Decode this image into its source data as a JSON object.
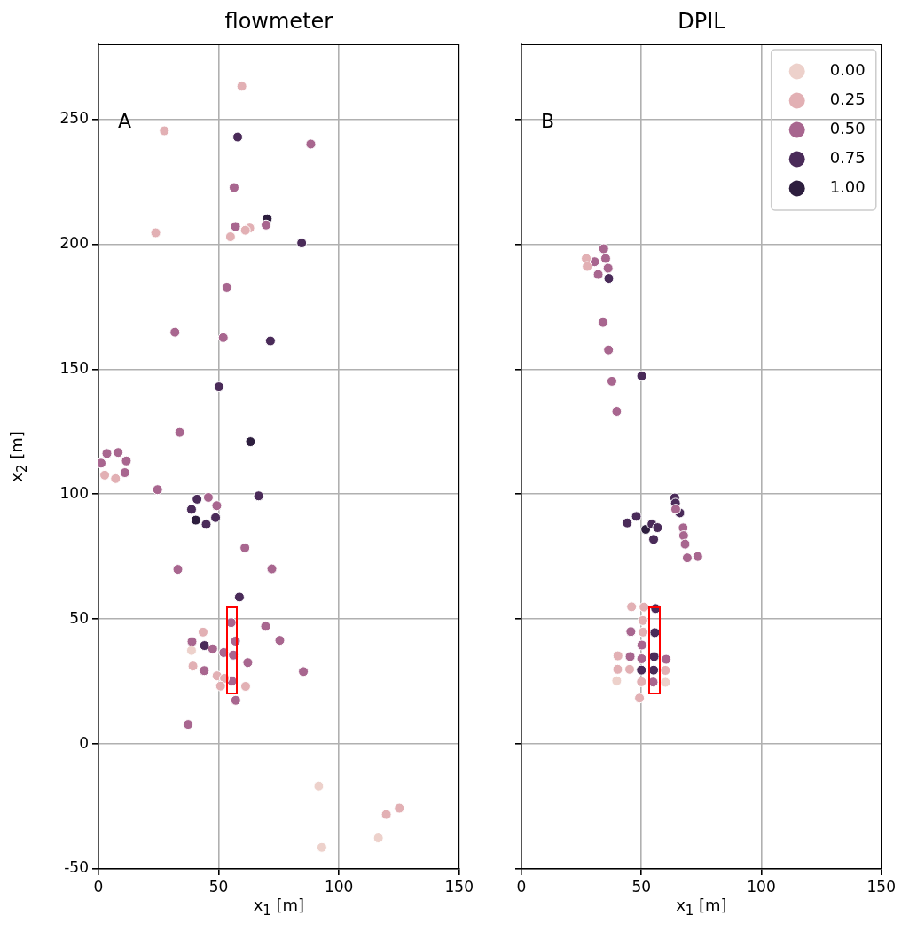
{
  "chart_data": [
    {
      "type": "scatter",
      "title": "flowmeter",
      "xlabel": "x$_{1}$ [m]",
      "ylabel": "x$_{2}$ [m]",
      "annotations": [
        "A"
      ],
      "series": [
        {
          "color": "#edd1cb",
          "x": [
            38.7,
            91.6,
            116.4,
            92.9
          ],
          "values": [
            37.4,
            -16.9,
            -37.6,
            -41.4
          ]
        },
        {
          "color": "#e2b0b4",
          "x": [
            59.6,
            27.4,
            62.9,
            61.1,
            54.9,
            23.8,
            2.6,
            7.1,
            43.5,
            39.3,
            49.3,
            52.4,
            50.8,
            61.2,
            125.1,
            119.7
          ],
          "values": [
            263.2,
            245.4,
            206.5,
            205.6,
            203.0,
            204.6,
            107.6,
            106.2,
            44.8,
            31.2,
            27.3,
            26.3,
            23.2,
            23.1,
            -25.7,
            -28.2
          ]
        },
        {
          "color": "#a8668f",
          "x": [
            88.3,
            56.4,
            69.7,
            57.0,
            53.4,
            31.8,
            51.9,
            33.8,
            3.5,
            8.2,
            11.6,
            1.1,
            11.0,
            24.6,
            45.7,
            49.2,
            60.9,
            33.0,
            72.1,
            55.2,
            69.5,
            38.9,
            75.4,
            47.5,
            57.0,
            52.1,
            56.1,
            62.1,
            44.0,
            85.2,
            55.5,
            57.1,
            37.3
          ],
          "values": [
            240.1,
            222.7,
            207.7,
            207.1,
            182.8,
            164.8,
            162.6,
            124.7,
            116.3,
            116.7,
            113.3,
            112.4,
            108.6,
            101.8,
            98.7,
            95.4,
            78.5,
            69.9,
            70.1,
            48.6,
            47.1,
            41.0,
            41.5,
            38.1,
            41.2,
            36.6,
            35.6,
            32.6,
            29.4,
            29.0,
            25.2,
            17.5,
            7.8
          ]
        },
        {
          "color": "#4a2b59",
          "x": [
            57.9,
            84.5,
            71.5,
            50.1,
            41.0,
            38.7,
            48.7,
            44.8,
            66.6,
            58.6,
            44.1
          ],
          "values": [
            242.9,
            200.5,
            161.3,
            143.0,
            98.0,
            93.9,
            90.6,
            87.9,
            99.3,
            58.8,
            39.4
          ]
        },
        {
          "color": "#2d1e3e",
          "x": [
            70.2,
            63.2,
            40.5
          ],
          "values": [
            210.2,
            121.0,
            89.6
          ]
        }
      ],
      "xlim": [
        0,
        150
      ],
      "xticks": [
        0,
        50,
        100,
        150
      ],
      "ylim": [
        -50,
        280
      ],
      "yticks": [
        -50,
        0,
        50,
        100,
        150,
        200,
        250
      ],
      "grid": true,
      "marker": "circle"
    },
    {
      "type": "scatter",
      "title": "DPIL",
      "xlabel": "x$_{1}$ [m]",
      "annotations": [
        "B"
      ],
      "series": [
        {
          "name": "0.00",
          "color": "#edd1cb",
          "x": [
            39.7,
            60.0
          ],
          "values": [
            25.3,
            24.7
          ]
        },
        {
          "name": "0.25",
          "color": "#e2b0b4",
          "x": [
            27.0,
            27.4,
            45.9,
            51.1,
            50.6,
            50.7,
            40.2,
            45.1,
            40.1,
            60.0,
            50.0,
            49.2
          ],
          "values": [
            194.3,
            191.1,
            54.9,
            54.8,
            49.4,
            44.8,
            35.3,
            29.9,
            29.9,
            29.5,
            24.9,
            18.4
          ]
        },
        {
          "name": "0.50",
          "color": "#a8668f",
          "x": [
            34.3,
            35.1,
            30.5,
            36.1,
            32.0,
            34.0,
            36.3,
            37.7,
            39.7,
            64.3,
            67.4,
            67.6,
            68.2,
            69.1,
            73.5,
            45.6,
            50.2,
            50.1,
            45.3,
            60.3,
            54.9
          ],
          "values": [
            198.2,
            194.3,
            193.0,
            190.4,
            187.9,
            168.7,
            157.7,
            145.2,
            133.1,
            94.0,
            86.5,
            83.4,
            80.0,
            74.5,
            75.0,
            45.0,
            39.6,
            34.1,
            35.0,
            33.9,
            24.8
          ]
        },
        {
          "name": "0.75",
          "color": "#4a2b59",
          "x": [
            36.4,
            50.1,
            63.9,
            64.2,
            66.0,
            47.9,
            44.1,
            54.4,
            56.7,
            55.1,
            55.9,
            55.6,
            55.3,
            55.1,
            50.0
          ],
          "values": [
            186.3,
            147.3,
            98.5,
            96.4,
            92.5,
            91.1,
            88.5,
            88.0,
            86.6,
            81.9,
            54.2,
            44.6,
            35.0,
            29.6,
            29.6
          ]
        },
        {
          "name": "1.00",
          "color": "#2d1e3e",
          "x": [
            51.8
          ],
          "values": [
            85.9
          ]
        }
      ],
      "xlim": [
        0,
        150
      ],
      "xticks": [
        0,
        50,
        100,
        150
      ],
      "ylim": [
        -50,
        280
      ],
      "yticks": [
        -50,
        0,
        50,
        100,
        150,
        200,
        250
      ],
      "grid": true,
      "legend": "top right",
      "tick_labels": "x",
      "marker": "circle"
    }
  ]
}
